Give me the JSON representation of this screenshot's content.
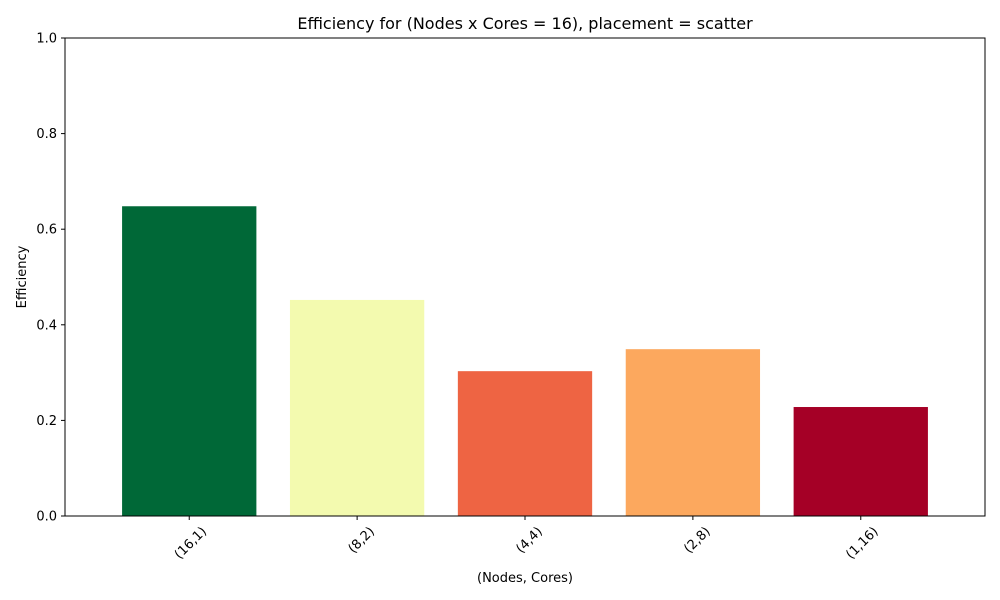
{
  "chart_data": {
    "type": "bar",
    "title": "Efficiency for (Nodes x Cores = 16), placement = scatter",
    "xlabel": "(Nodes, Cores)",
    "ylabel": "Efficiency",
    "categories": [
      "(16,1)",
      "(8,2)",
      "(4,4)",
      "(2,8)",
      "(1,16)"
    ],
    "values": [
      0.648,
      0.452,
      0.303,
      0.349,
      0.228
    ],
    "colors": [
      "#006837",
      "#f3faaf",
      "#ee6443",
      "#fca85e",
      "#a50026"
    ],
    "ylim": [
      0,
      1
    ],
    "yticks": [
      0.0,
      0.2,
      0.4,
      0.6,
      0.8,
      1.0
    ],
    "ytick_labels": [
      "0.0",
      "0.2",
      "0.4",
      "0.6",
      "0.8",
      "1.0"
    ],
    "grid": false,
    "legend": "none"
  }
}
